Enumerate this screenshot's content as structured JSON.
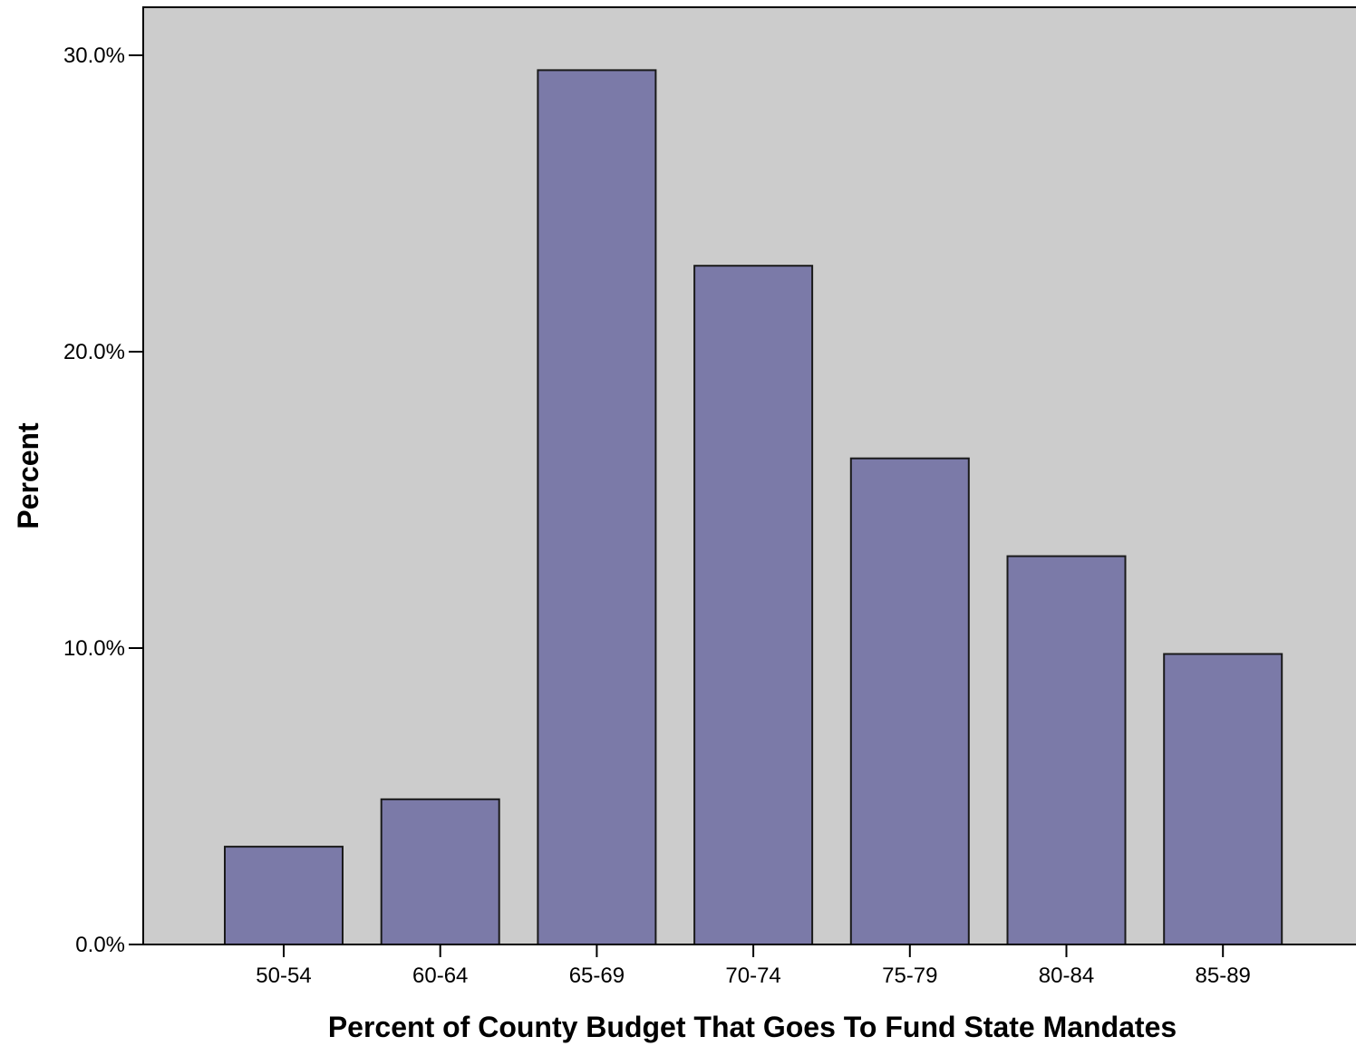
{
  "chart_data": {
    "type": "bar",
    "title": "",
    "xlabel": "Percent of County Budget That Goes To Fund State Mandates",
    "ylabel": "Percent",
    "categories": [
      "50-54",
      "60-64",
      "65-69",
      "70-74",
      "75-79",
      "80-84",
      "85-89"
    ],
    "values": [
      3.3,
      4.9,
      29.5,
      22.9,
      16.4,
      13.1,
      9.8
    ],
    "value_unit": "%",
    "ylim": [
      0,
      30
    ],
    "yticks": [
      0,
      10,
      20,
      30
    ],
    "ytick_labels": [
      "0.0%",
      "10.0%",
      "20.0%",
      "30.0%"
    ],
    "grid": false,
    "legend": "none",
    "colors": {
      "plot_background": "#cccccc",
      "bar_fill": "#7b7aa8",
      "bar_stroke": "#1a1a1a",
      "axis": "#000000"
    }
  }
}
